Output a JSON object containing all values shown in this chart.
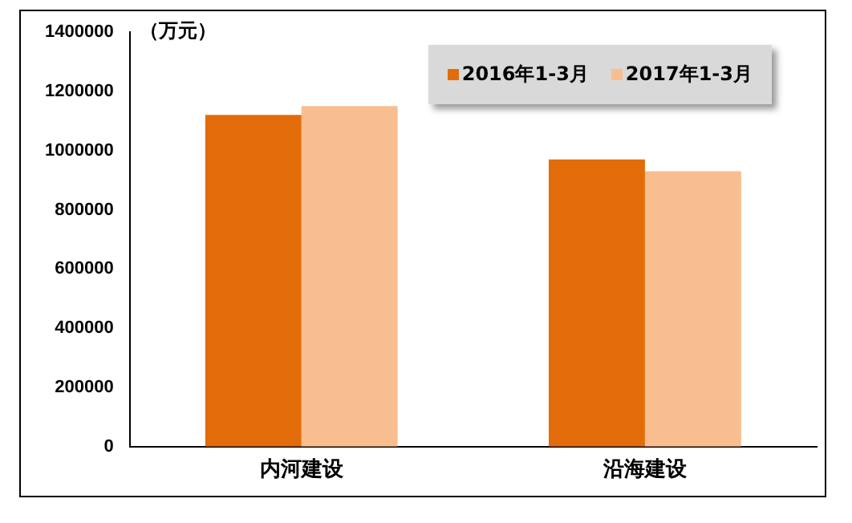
{
  "chart_data": {
    "type": "bar",
    "ylabel": "（万元）",
    "categories": [
      "内河建设",
      "沿海建设"
    ],
    "series": [
      {
        "name": "2016年1-3月",
        "color": "#e36c0a",
        "values": [
          1120000,
          970000
        ]
      },
      {
        "name": "2017年1-3月",
        "color": "#f9be8f",
        "values": [
          1150000,
          930000
        ]
      }
    ],
    "ylim": [
      0,
      1400000
    ],
    "yticks": [
      0,
      200000,
      400000,
      600000,
      800000,
      1000000,
      1200000,
      1400000
    ],
    "grid": false,
    "legend": "top right"
  }
}
